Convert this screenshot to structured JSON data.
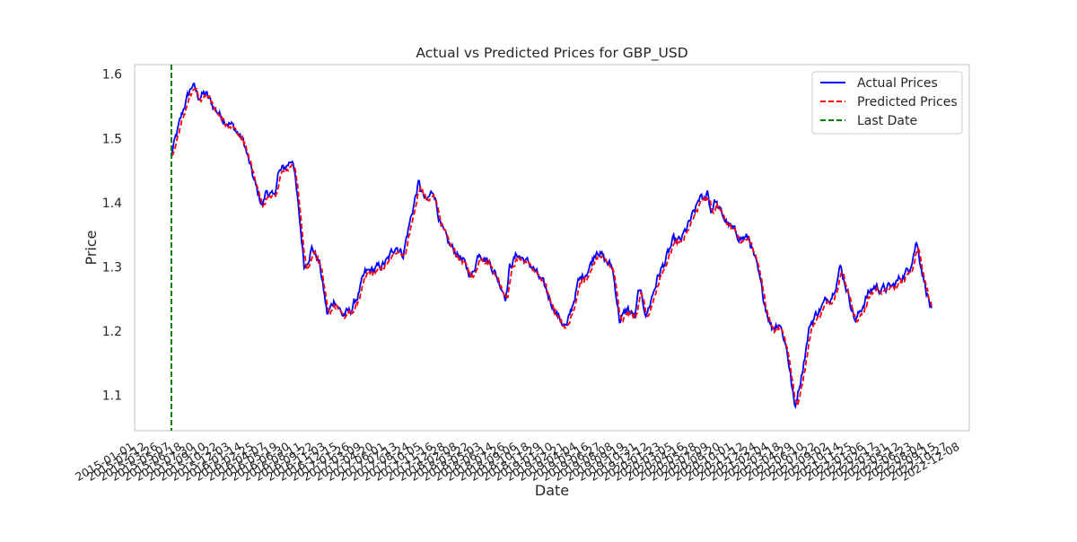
{
  "chart_data": {
    "type": "line",
    "title": "Actual vs Predicted Prices for GBP_USD",
    "xlabel": "Date",
    "ylabel": "Price",
    "x_range": [
      0,
      1000
    ],
    "ylim": [
      1.045,
      1.615
    ],
    "yticks": [
      1.1,
      1.2,
      1.3,
      1.4,
      1.5,
      1.6
    ],
    "ytick_labels": [
      "1.1",
      "1.2",
      "1.3",
      "1.4",
      "1.5",
      "1.6"
    ],
    "grid": false,
    "legend_position": "top-right",
    "xtick_labels_note": "dense overlapping rotated date labels, illegible",
    "x_anchor_positions": [
      0,
      18,
      28,
      35,
      45,
      55,
      65,
      80,
      95,
      105,
      112,
      120,
      125,
      135,
      140,
      150,
      160,
      175,
      185,
      195,
      205,
      215,
      225,
      235,
      245,
      255,
      265,
      275,
      285,
      295,
      305,
      310,
      325,
      335,
      345,
      355,
      365,
      380,
      395,
      405,
      420,
      430,
      440,
      445,
      455,
      470,
      475,
      490,
      500,
      510,
      520,
      535,
      550,
      560,
      570,
      580,
      590,
      600,
      610,
      615,
      625,
      640,
      650,
      660,
      670,
      690,
      695,
      700,
      705,
      710,
      715,
      720,
      730,
      740,
      750,
      760,
      770,
      780,
      790,
      800,
      810,
      820,
      830,
      840,
      850,
      860,
      870,
      880,
      890,
      900,
      915,
      925,
      935,
      950,
      960,
      970,
      980,
      990,
      1000
    ],
    "x_anchor_values": [
      1.475,
      1.555,
      1.585,
      1.565,
      1.57,
      1.55,
      1.535,
      1.52,
      1.495,
      1.45,
      1.42,
      1.395,
      1.42,
      1.405,
      1.445,
      1.455,
      1.47,
      1.3,
      1.33,
      1.305,
      1.225,
      1.25,
      1.225,
      1.23,
      1.255,
      1.29,
      1.295,
      1.3,
      1.31,
      1.335,
      1.32,
      1.35,
      1.43,
      1.4,
      1.42,
      1.36,
      1.335,
      1.315,
      1.285,
      1.325,
      1.305,
      1.28,
      1.255,
      1.3,
      1.32,
      1.305,
      1.3,
      1.27,
      1.245,
      1.22,
      1.205,
      1.275,
      1.3,
      1.33,
      1.31,
      1.3,
      1.215,
      1.235,
      1.22,
      1.265,
      1.225,
      1.285,
      1.31,
      1.34,
      1.34,
      1.39,
      1.41,
      1.4,
      1.42,
      1.385,
      1.405,
      1.39,
      1.37,
      1.355,
      1.345,
      1.345,
      1.3,
      1.245,
      1.205,
      1.215,
      1.17,
      1.08,
      1.14,
      1.21,
      1.23,
      1.245,
      1.26,
      1.3,
      1.26,
      1.215,
      1.255,
      1.27,
      1.265,
      1.27,
      1.285,
      1.295,
      1.34,
      1.28,
      1.23
    ],
    "series": [
      {
        "name": "Actual Prices",
        "color": "#0000ff",
        "style": "solid"
      },
      {
        "name": "Predicted Prices",
        "color": "#ff0000",
        "style": "dashed"
      },
      {
        "name": "Last Date",
        "color": "#008000",
        "style": "dashed",
        "vertical_at_x": 0
      }
    ]
  },
  "colors": {
    "actual": "#0000ff",
    "predicted": "#ff0000",
    "last_date": "#008000",
    "frame": "#cccccc"
  }
}
